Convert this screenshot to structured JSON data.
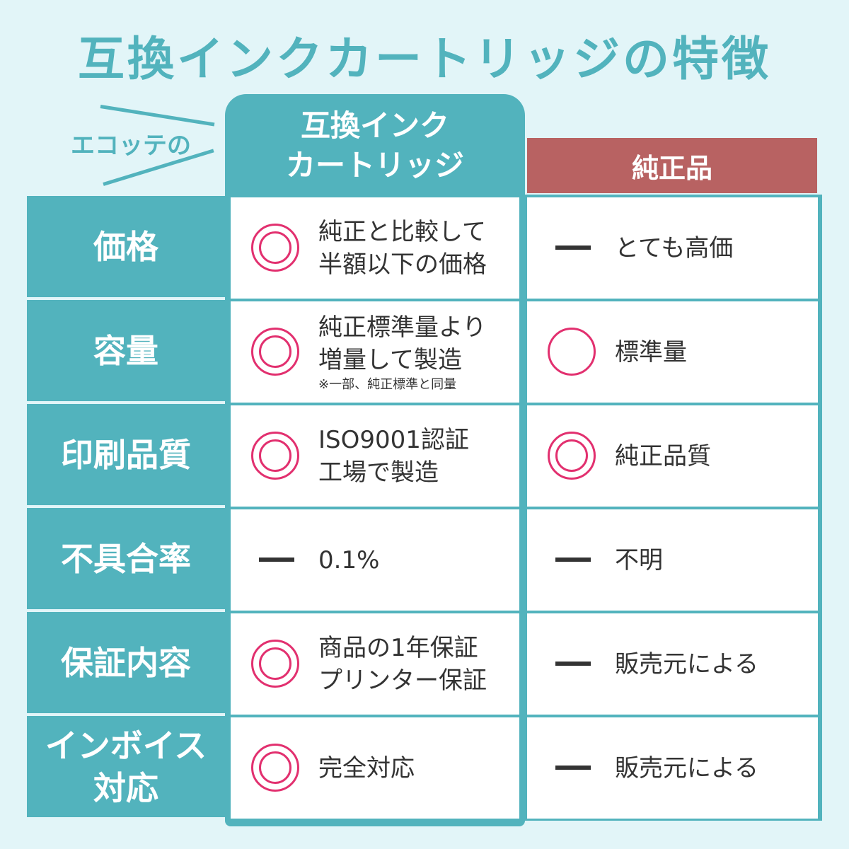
{
  "title": "互換インクカートリッジの特徴",
  "brand_label": "エコッテの",
  "columns": {
    "compatible": "互換インク\nカートリッジ",
    "genuine": "純正品"
  },
  "colors": {
    "teal": "#52b3bd",
    "genuine_red": "#b86262",
    "mark_pink": "#e2306f",
    "background": "#e2f5f8"
  },
  "rows": [
    {
      "label": "価格",
      "compat": {
        "mark": "double-circle",
        "text": "純正と比較して\n半額以下の価格"
      },
      "genuine": {
        "mark": "dash",
        "text": "とても高価"
      }
    },
    {
      "label": "容量",
      "compat": {
        "mark": "double-circle",
        "text": "純正標準量より\n増量して製造",
        "note": "※一部、純正標準と同量"
      },
      "genuine": {
        "mark": "circle",
        "text": "標準量"
      }
    },
    {
      "label": "印刷品質",
      "compat": {
        "mark": "double-circle",
        "text": "ISO9001認証\n工場で製造"
      },
      "genuine": {
        "mark": "double-circle",
        "text": "純正品質"
      }
    },
    {
      "label": "不具合率",
      "compat": {
        "mark": "dash",
        "text": "0.1%"
      },
      "genuine": {
        "mark": "dash",
        "text": "不明"
      }
    },
    {
      "label": "保証内容",
      "compat": {
        "mark": "double-circle",
        "text": "商品の1年保証\nプリンター保証"
      },
      "genuine": {
        "mark": "dash",
        "text": "販売元による"
      }
    },
    {
      "label": "インボイス\n対応",
      "compat": {
        "mark": "double-circle",
        "text": "完全対応"
      },
      "genuine": {
        "mark": "dash",
        "text": "販売元による"
      }
    }
  ]
}
